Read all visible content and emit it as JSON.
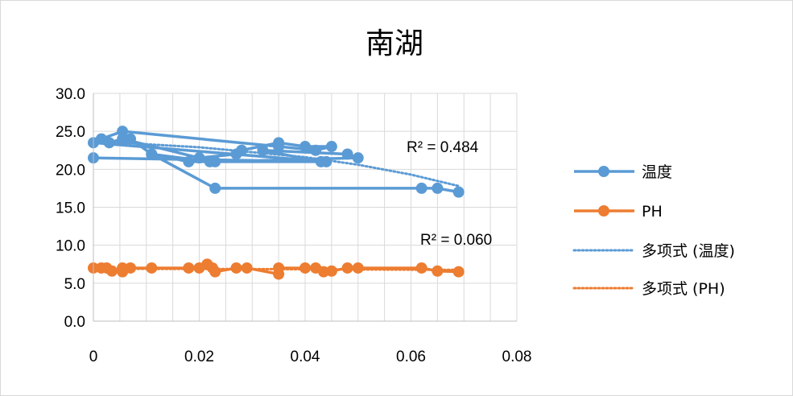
{
  "chart_data": {
    "type": "scatter",
    "title": "南湖",
    "xlim": [
      0,
      0.08
    ],
    "ylim": [
      0,
      30
    ],
    "x_ticks": [
      "0",
      "0.02",
      "0.04",
      "0.06",
      "0.08"
    ],
    "y_ticks": [
      "0.0",
      "5.0",
      "10.0",
      "15.0",
      "20.0",
      "25.0",
      "30.0"
    ],
    "grid": true,
    "legend_position": "right",
    "series": [
      {
        "name": "温度",
        "color": "#5b9bd5",
        "style": "line-markers",
        "points": [
          [
            0.0,
            21.5
          ],
          [
            0.044,
            21.0
          ],
          [
            0.0,
            23.5
          ],
          [
            0.0015,
            24.0
          ],
          [
            0.0055,
            25.0
          ],
          [
            0.035,
            23.0
          ],
          [
            0.042,
            22.5
          ],
          [
            0.045,
            23.0
          ],
          [
            0.04,
            23.0
          ],
          [
            0.035,
            23.5
          ],
          [
            0.028,
            22.5
          ],
          [
            0.027,
            22.0
          ],
          [
            0.02,
            21.5
          ],
          [
            0.0055,
            24.0
          ],
          [
            0.003,
            23.5
          ],
          [
            0.007,
            24.0
          ],
          [
            0.011,
            22.0
          ],
          [
            0.018,
            21.0
          ],
          [
            0.023,
            21.0
          ],
          [
            0.05,
            21.5
          ],
          [
            0.048,
            22.0
          ],
          [
            0.032,
            22.5
          ],
          [
            0.043,
            21.0
          ],
          [
            0.022,
            21.0
          ],
          [
            0.011,
            22.0
          ],
          [
            0.023,
            17.5
          ],
          [
            0.062,
            17.5
          ],
          [
            0.065,
            17.5
          ],
          [
            0.069,
            17.0
          ]
        ]
      },
      {
        "name": "PH",
        "color": "#ed7d31",
        "style": "line-markers",
        "points": [
          [
            0.0,
            7.0
          ],
          [
            0.0015,
            7.0
          ],
          [
            0.0025,
            7.0
          ],
          [
            0.0035,
            6.6
          ],
          [
            0.0055,
            7.0
          ],
          [
            0.0055,
            6.5
          ],
          [
            0.007,
            7.0
          ],
          [
            0.011,
            7.0
          ],
          [
            0.018,
            7.0
          ],
          [
            0.02,
            7.0
          ],
          [
            0.0215,
            7.5
          ],
          [
            0.0225,
            7.0
          ],
          [
            0.023,
            6.5
          ],
          [
            0.027,
            7.0
          ],
          [
            0.029,
            7.0
          ],
          [
            0.035,
            6.2
          ],
          [
            0.035,
            7.0
          ],
          [
            0.04,
            7.0
          ],
          [
            0.042,
            7.0
          ],
          [
            0.0435,
            6.5
          ],
          [
            0.045,
            6.6
          ],
          [
            0.048,
            7.0
          ],
          [
            0.05,
            7.0
          ],
          [
            0.062,
            7.0
          ],
          [
            0.065,
            6.6
          ],
          [
            0.069,
            6.5
          ]
        ]
      },
      {
        "name": "多项式 (温度)",
        "color": "#5b9bd5",
        "style": "dotted",
        "trend_points": [
          [
            0.0,
            23.7
          ],
          [
            0.02,
            22.9
          ],
          [
            0.04,
            21.6
          ],
          [
            0.05,
            20.6
          ],
          [
            0.06,
            19.3
          ],
          [
            0.069,
            17.8
          ]
        ]
      },
      {
        "name": "多项式 (PH)",
        "color": "#ed7d31",
        "style": "dotted",
        "trend_points": [
          [
            0.0,
            6.9
          ],
          [
            0.035,
            6.85
          ],
          [
            0.069,
            6.75
          ]
        ]
      }
    ],
    "annotations": [
      {
        "text": "R² = 0.484",
        "series": "温度"
      },
      {
        "text": "R² = 0.060",
        "series": "PH"
      }
    ]
  }
}
